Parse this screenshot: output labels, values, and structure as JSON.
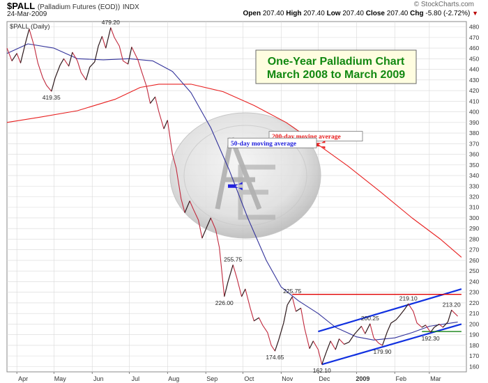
{
  "header": {
    "symbol": "$PALL",
    "name": "(Palladium Futures (EOD))",
    "exchange": "INDX",
    "date": "24-Mar-2009",
    "copyright": "© StockCharts.com",
    "open_label": "Open",
    "open": "207.40",
    "high_label": "High",
    "high": "207.40",
    "low_label": "Low",
    "low": "207.40",
    "close_label": "Close",
    "close": "207.40",
    "chg_label": "Chg",
    "chg": "-5.80 (-2.72%)",
    "chg_marker": "▼"
  },
  "colors": {
    "price": "#c0283c",
    "ma50": "#33339b",
    "ma200": "#e82020",
    "channel": "#1030e0",
    "resistance": "#e00000",
    "support": "#108010",
    "title_text": "#118811",
    "grid": "#d8d8d8"
  },
  "chart_data": {
    "type": "line",
    "title": "One-Year Palladium Chart\nMarch 2008 to March 2009",
    "title_line1": "One-Year Palladium Chart",
    "title_line2": "March 2008 to March 2009",
    "panel_label": "$PALL (Daily)",
    "ylim": [
      155,
      485
    ],
    "y_ticks": [
      160,
      170,
      180,
      190,
      200,
      210,
      220,
      230,
      240,
      250,
      260,
      270,
      280,
      290,
      300,
      310,
      320,
      330,
      340,
      350,
      360,
      370,
      380,
      390,
      400,
      410,
      420,
      430,
      440,
      450,
      460,
      470,
      480
    ],
    "x_ticks": [
      {
        "label": "Apr",
        "date": "2008-04-01"
      },
      {
        "label": "May",
        "date": "2008-05-01"
      },
      {
        "label": "Jun",
        "date": "2008-06-01"
      },
      {
        "label": "Jul",
        "date": "2008-07-01"
      },
      {
        "label": "Aug",
        "date": "2008-08-01"
      },
      {
        "label": "Sep",
        "date": "2008-09-01"
      },
      {
        "label": "Oct",
        "date": "2008-10-01"
      },
      {
        "label": "Nov",
        "date": "2008-11-01"
      },
      {
        "label": "Dec",
        "date": "2008-12-01"
      },
      {
        "label": "2009",
        "date": "2009-01-01",
        "bold": true
      },
      {
        "label": "Feb",
        "date": "2009-02-01"
      },
      {
        "label": "Mar",
        "date": "2009-03-01"
      }
    ],
    "xlim": [
      "2008-03-24",
      "2009-03-31"
    ],
    "grid": true,
    "series": [
      {
        "name": "$PALL",
        "points": [
          [
            "2008-03-24",
            460
          ],
          [
            "2008-03-28",
            448
          ],
          [
            "2008-04-01",
            455
          ],
          [
            "2008-04-04",
            446
          ],
          [
            "2008-04-08",
            465
          ],
          [
            "2008-04-11",
            478
          ],
          [
            "2008-04-15",
            462
          ],
          [
            "2008-04-18",
            446
          ],
          [
            "2008-04-22",
            432
          ],
          [
            "2008-04-25",
            425
          ],
          [
            "2008-04-29",
            419.35
          ],
          [
            "2008-05-02",
            432
          ],
          [
            "2008-05-06",
            444
          ],
          [
            "2008-05-09",
            450
          ],
          [
            "2008-05-13",
            443
          ],
          [
            "2008-05-16",
            456
          ],
          [
            "2008-05-20",
            448
          ],
          [
            "2008-05-23",
            437
          ],
          [
            "2008-05-27",
            430
          ],
          [
            "2008-05-30",
            442
          ],
          [
            "2008-06-03",
            447
          ],
          [
            "2008-06-06",
            462
          ],
          [
            "2008-06-09",
            471
          ],
          [
            "2008-06-12",
            460
          ],
          [
            "2008-06-16",
            479.2
          ],
          [
            "2008-06-19",
            470
          ],
          [
            "2008-06-23",
            462
          ],
          [
            "2008-06-26",
            448
          ],
          [
            "2008-06-30",
            445
          ],
          [
            "2008-07-03",
            461
          ],
          [
            "2008-07-08",
            449
          ],
          [
            "2008-07-11",
            438
          ],
          [
            "2008-07-15",
            424
          ],
          [
            "2008-07-18",
            408
          ],
          [
            "2008-07-22",
            414
          ],
          [
            "2008-07-25",
            400
          ],
          [
            "2008-07-29",
            384
          ],
          [
            "2008-08-01",
            392
          ],
          [
            "2008-08-05",
            360
          ],
          [
            "2008-08-08",
            347
          ],
          [
            "2008-08-12",
            318
          ],
          [
            "2008-08-15",
            305
          ],
          [
            "2008-08-19",
            316
          ],
          [
            "2008-08-22",
            308
          ],
          [
            "2008-08-26",
            298
          ],
          [
            "2008-08-29",
            281
          ],
          [
            "2008-09-02",
            292
          ],
          [
            "2008-09-05",
            300
          ],
          [
            "2008-09-09",
            289
          ],
          [
            "2008-09-12",
            272
          ],
          [
            "2008-09-16",
            226
          ],
          [
            "2008-09-19",
            240
          ],
          [
            "2008-09-23",
            255.75
          ],
          [
            "2008-09-26",
            244
          ],
          [
            "2008-09-30",
            226
          ],
          [
            "2008-10-03",
            233
          ],
          [
            "2008-10-07",
            215
          ],
          [
            "2008-10-10",
            203
          ],
          [
            "2008-10-14",
            206
          ],
          [
            "2008-10-17",
            199
          ],
          [
            "2008-10-21",
            192
          ],
          [
            "2008-10-24",
            180
          ],
          [
            "2008-10-27",
            174.65
          ],
          [
            "2008-10-30",
            185
          ],
          [
            "2008-11-03",
            201
          ],
          [
            "2008-11-06",
            218
          ],
          [
            "2008-11-10",
            225.75
          ],
          [
            "2008-11-13",
            212
          ],
          [
            "2008-11-17",
            215
          ],
          [
            "2008-11-20",
            196
          ],
          [
            "2008-11-24",
            177
          ],
          [
            "2008-11-27",
            184
          ],
          [
            "2008-12-01",
            176
          ],
          [
            "2008-12-04",
            162.1
          ],
          [
            "2008-12-08",
            175
          ],
          [
            "2008-12-11",
            184
          ],
          [
            "2008-12-15",
            176
          ],
          [
            "2008-12-18",
            186
          ],
          [
            "2008-12-22",
            181
          ],
          [
            "2008-12-26",
            183
          ],
          [
            "2008-12-30",
            190
          ],
          [
            "2009-01-05",
            198
          ],
          [
            "2009-01-08",
            191
          ],
          [
            "2009-01-12",
            200.25
          ],
          [
            "2009-01-15",
            187
          ],
          [
            "2009-01-19",
            182
          ],
          [
            "2009-01-22",
            179.9
          ],
          [
            "2009-01-26",
            193
          ],
          [
            "2009-01-29",
            201
          ],
          [
            "2009-02-02",
            204
          ],
          [
            "2009-02-05",
            208
          ],
          [
            "2009-02-09",
            214
          ],
          [
            "2009-02-12",
            219.1
          ],
          [
            "2009-02-16",
            212
          ],
          [
            "2009-02-19",
            201
          ],
          [
            "2009-02-23",
            197
          ],
          [
            "2009-02-26",
            199
          ],
          [
            "2009-03-02",
            192.3
          ],
          [
            "2009-03-05",
            197
          ],
          [
            "2009-03-09",
            200
          ],
          [
            "2009-03-12",
            197
          ],
          [
            "2009-03-16",
            202
          ],
          [
            "2009-03-19",
            213.2
          ],
          [
            "2009-03-24",
            207.4
          ]
        ]
      },
      {
        "name": "50-day moving average",
        "points": [
          [
            "2008-03-24",
            455
          ],
          [
            "2008-04-10",
            464
          ],
          [
            "2008-05-01",
            460
          ],
          [
            "2008-05-20",
            450
          ],
          [
            "2008-06-10",
            449
          ],
          [
            "2008-07-01",
            450
          ],
          [
            "2008-07-20",
            448
          ],
          [
            "2008-08-05",
            438
          ],
          [
            "2008-08-20",
            418
          ],
          [
            "2008-09-05",
            385
          ],
          [
            "2008-09-20",
            345
          ],
          [
            "2008-10-05",
            300
          ],
          [
            "2008-10-20",
            260
          ],
          [
            "2008-11-01",
            235
          ],
          [
            "2008-11-15",
            222
          ],
          [
            "2008-12-01",
            210
          ],
          [
            "2008-12-15",
            197
          ],
          [
            "2009-01-01",
            188
          ],
          [
            "2009-01-15",
            185
          ],
          [
            "2009-02-01",
            187
          ],
          [
            "2009-02-15",
            192
          ],
          [
            "2009-03-01",
            198
          ],
          [
            "2009-03-24",
            202
          ]
        ]
      },
      {
        "name": "200-day moving average",
        "points": [
          [
            "2008-03-24",
            390
          ],
          [
            "2008-04-20",
            395
          ],
          [
            "2008-05-20",
            401
          ],
          [
            "2008-06-20",
            412
          ],
          [
            "2008-07-10",
            423
          ],
          [
            "2008-07-25",
            426
          ],
          [
            "2008-08-20",
            426
          ],
          [
            "2008-09-15",
            419
          ],
          [
            "2008-10-10",
            406
          ],
          [
            "2008-11-05",
            390
          ],
          [
            "2008-12-01",
            369
          ],
          [
            "2008-12-25",
            349
          ],
          [
            "2009-01-20",
            325
          ],
          [
            "2009-02-15",
            300
          ],
          [
            "2009-03-10",
            280
          ],
          [
            "2009-03-27",
            263
          ]
        ]
      }
    ],
    "overlays": {
      "channel_upper": [
        [
          "2008-12-01",
          193
        ],
        [
          "2009-03-27",
          233
        ]
      ],
      "channel_lower": [
        [
          "2008-12-04",
          162
        ],
        [
          "2009-03-27",
          200
        ]
      ],
      "resistance": [
        [
          "2008-11-10",
          228
        ],
        [
          "2009-03-27",
          228
        ]
      ],
      "support": [
        [
          "2009-02-23",
          193
        ],
        [
          "2009-03-27",
          193
        ]
      ]
    },
    "point_labels": [
      {
        "text": "479.20",
        "date": "2008-06-16",
        "value": 479.2,
        "pos": "above"
      },
      {
        "text": "419.35",
        "date": "2008-04-29",
        "value": 419.35,
        "pos": "below"
      },
      {
        "text": "255.75",
        "date": "2008-09-23",
        "value": 255.75,
        "pos": "above"
      },
      {
        "text": "226.00",
        "date": "2008-09-16",
        "value": 226,
        "pos": "below"
      },
      {
        "text": "225.75",
        "date": "2008-11-10",
        "value": 225.75,
        "pos": "above"
      },
      {
        "text": "174.65",
        "date": "2008-10-27",
        "value": 174.65,
        "pos": "below"
      },
      {
        "text": "162.10",
        "date": "2008-12-04",
        "value": 162.1,
        "pos": "below"
      },
      {
        "text": "200.25",
        "date": "2009-01-12",
        "value": 200.25,
        "pos": "above"
      },
      {
        "text": "179.90",
        "date": "2009-01-22",
        "value": 179.9,
        "pos": "below"
      },
      {
        "text": "219.10",
        "date": "2009-02-12",
        "value": 219.1,
        "pos": "above"
      },
      {
        "text": "192.30",
        "date": "2009-03-02",
        "value": 192.3,
        "pos": "below"
      },
      {
        "text": "213.20",
        "date": "2009-03-19",
        "value": 213.2,
        "pos": "above"
      }
    ],
    "annotations": [
      {
        "text": "200-day moving average",
        "series": "200-day moving average",
        "color": "#e82020"
      },
      {
        "text": "50-day moving average",
        "series": "50-day moving average",
        "color": "#2222dd"
      }
    ]
  }
}
